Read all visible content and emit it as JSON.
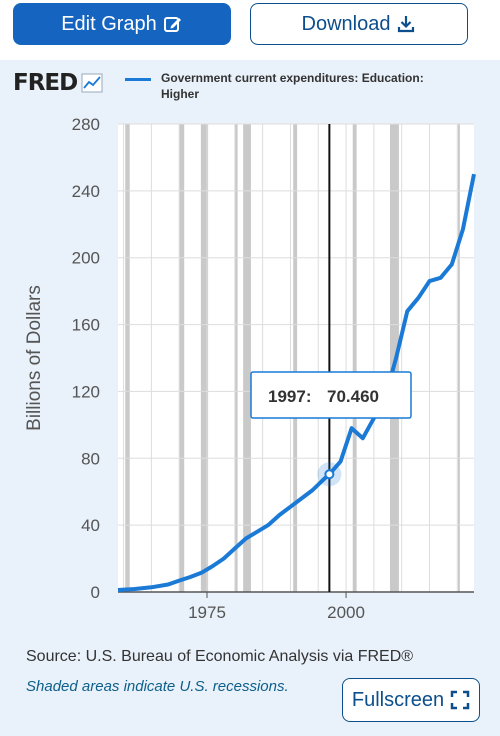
{
  "toolbar": {
    "edit_label": "Edit Graph",
    "download_label": "Download",
    "fullscreen_label": "Fullscreen"
  },
  "icons": {
    "edit": "pencil-square-icon",
    "download": "download-tray-icon",
    "fullscreen": "fullscreen-corners-icon",
    "logo_chart": "line-chart-icon"
  },
  "brand": {
    "logo_text": "FRED",
    "accent": "#1a7ad6",
    "button_blue": "#1565c0"
  },
  "footer": {
    "source": "Source: U.S. Bureau of Economic Analysis via FRED®",
    "recession_note": "Shaded areas indicate U.S. recessions."
  },
  "chart_data": {
    "type": "line",
    "legend": [
      "Government current expenditures: Education: Higher"
    ],
    "ylabel": "Billions of Dollars",
    "xlabel": "",
    "xlim": [
      1959,
      2023
    ],
    "ylim": [
      0,
      280
    ],
    "yticks": [
      0,
      40,
      80,
      120,
      160,
      200,
      240,
      280
    ],
    "xticks": [
      1975,
      2000
    ],
    "grid": true,
    "recessions": [
      [
        1960.3,
        1961.1
      ],
      [
        1970.0,
        1970.9
      ],
      [
        1973.9,
        1975.2
      ],
      [
        1980.0,
        1980.5
      ],
      [
        1981.5,
        1982.9
      ],
      [
        1990.5,
        1991.2
      ],
      [
        2001.2,
        2001.9
      ],
      [
        2007.9,
        2009.5
      ],
      [
        2020.1,
        2020.4
      ]
    ],
    "series": [
      {
        "name": "Government current expenditures: Education: Higher",
        "color": "#1a7ad6",
        "x": [
          1959,
          1962,
          1965,
          1968,
          1970,
          1972,
          1974,
          1976,
          1978,
          1980,
          1982,
          1984,
          1986,
          1988,
          1990,
          1992,
          1994,
          1996,
          1997,
          1999,
          2001,
          2003,
          2005,
          2007,
          2009,
          2011,
          2013,
          2015,
          2017,
          2019,
          2021,
          2023
        ],
        "values": [
          1.2,
          1.8,
          2.8,
          4.5,
          6.8,
          9.0,
          11.5,
          15.5,
          20.0,
          26.0,
          32.0,
          36.0,
          40.0,
          46.0,
          51.0,
          56.0,
          61.0,
          67.5,
          70.46,
          78.0,
          98.0,
          92.0,
          104.0,
          116.0,
          140.0,
          168.0,
          176.0,
          186.0,
          188.0,
          196.0,
          217.0,
          250.0
        ]
      }
    ],
    "tooltip": {
      "label": "1997:",
      "value": "70.460",
      "x": 1997,
      "y": 70.46
    }
  }
}
